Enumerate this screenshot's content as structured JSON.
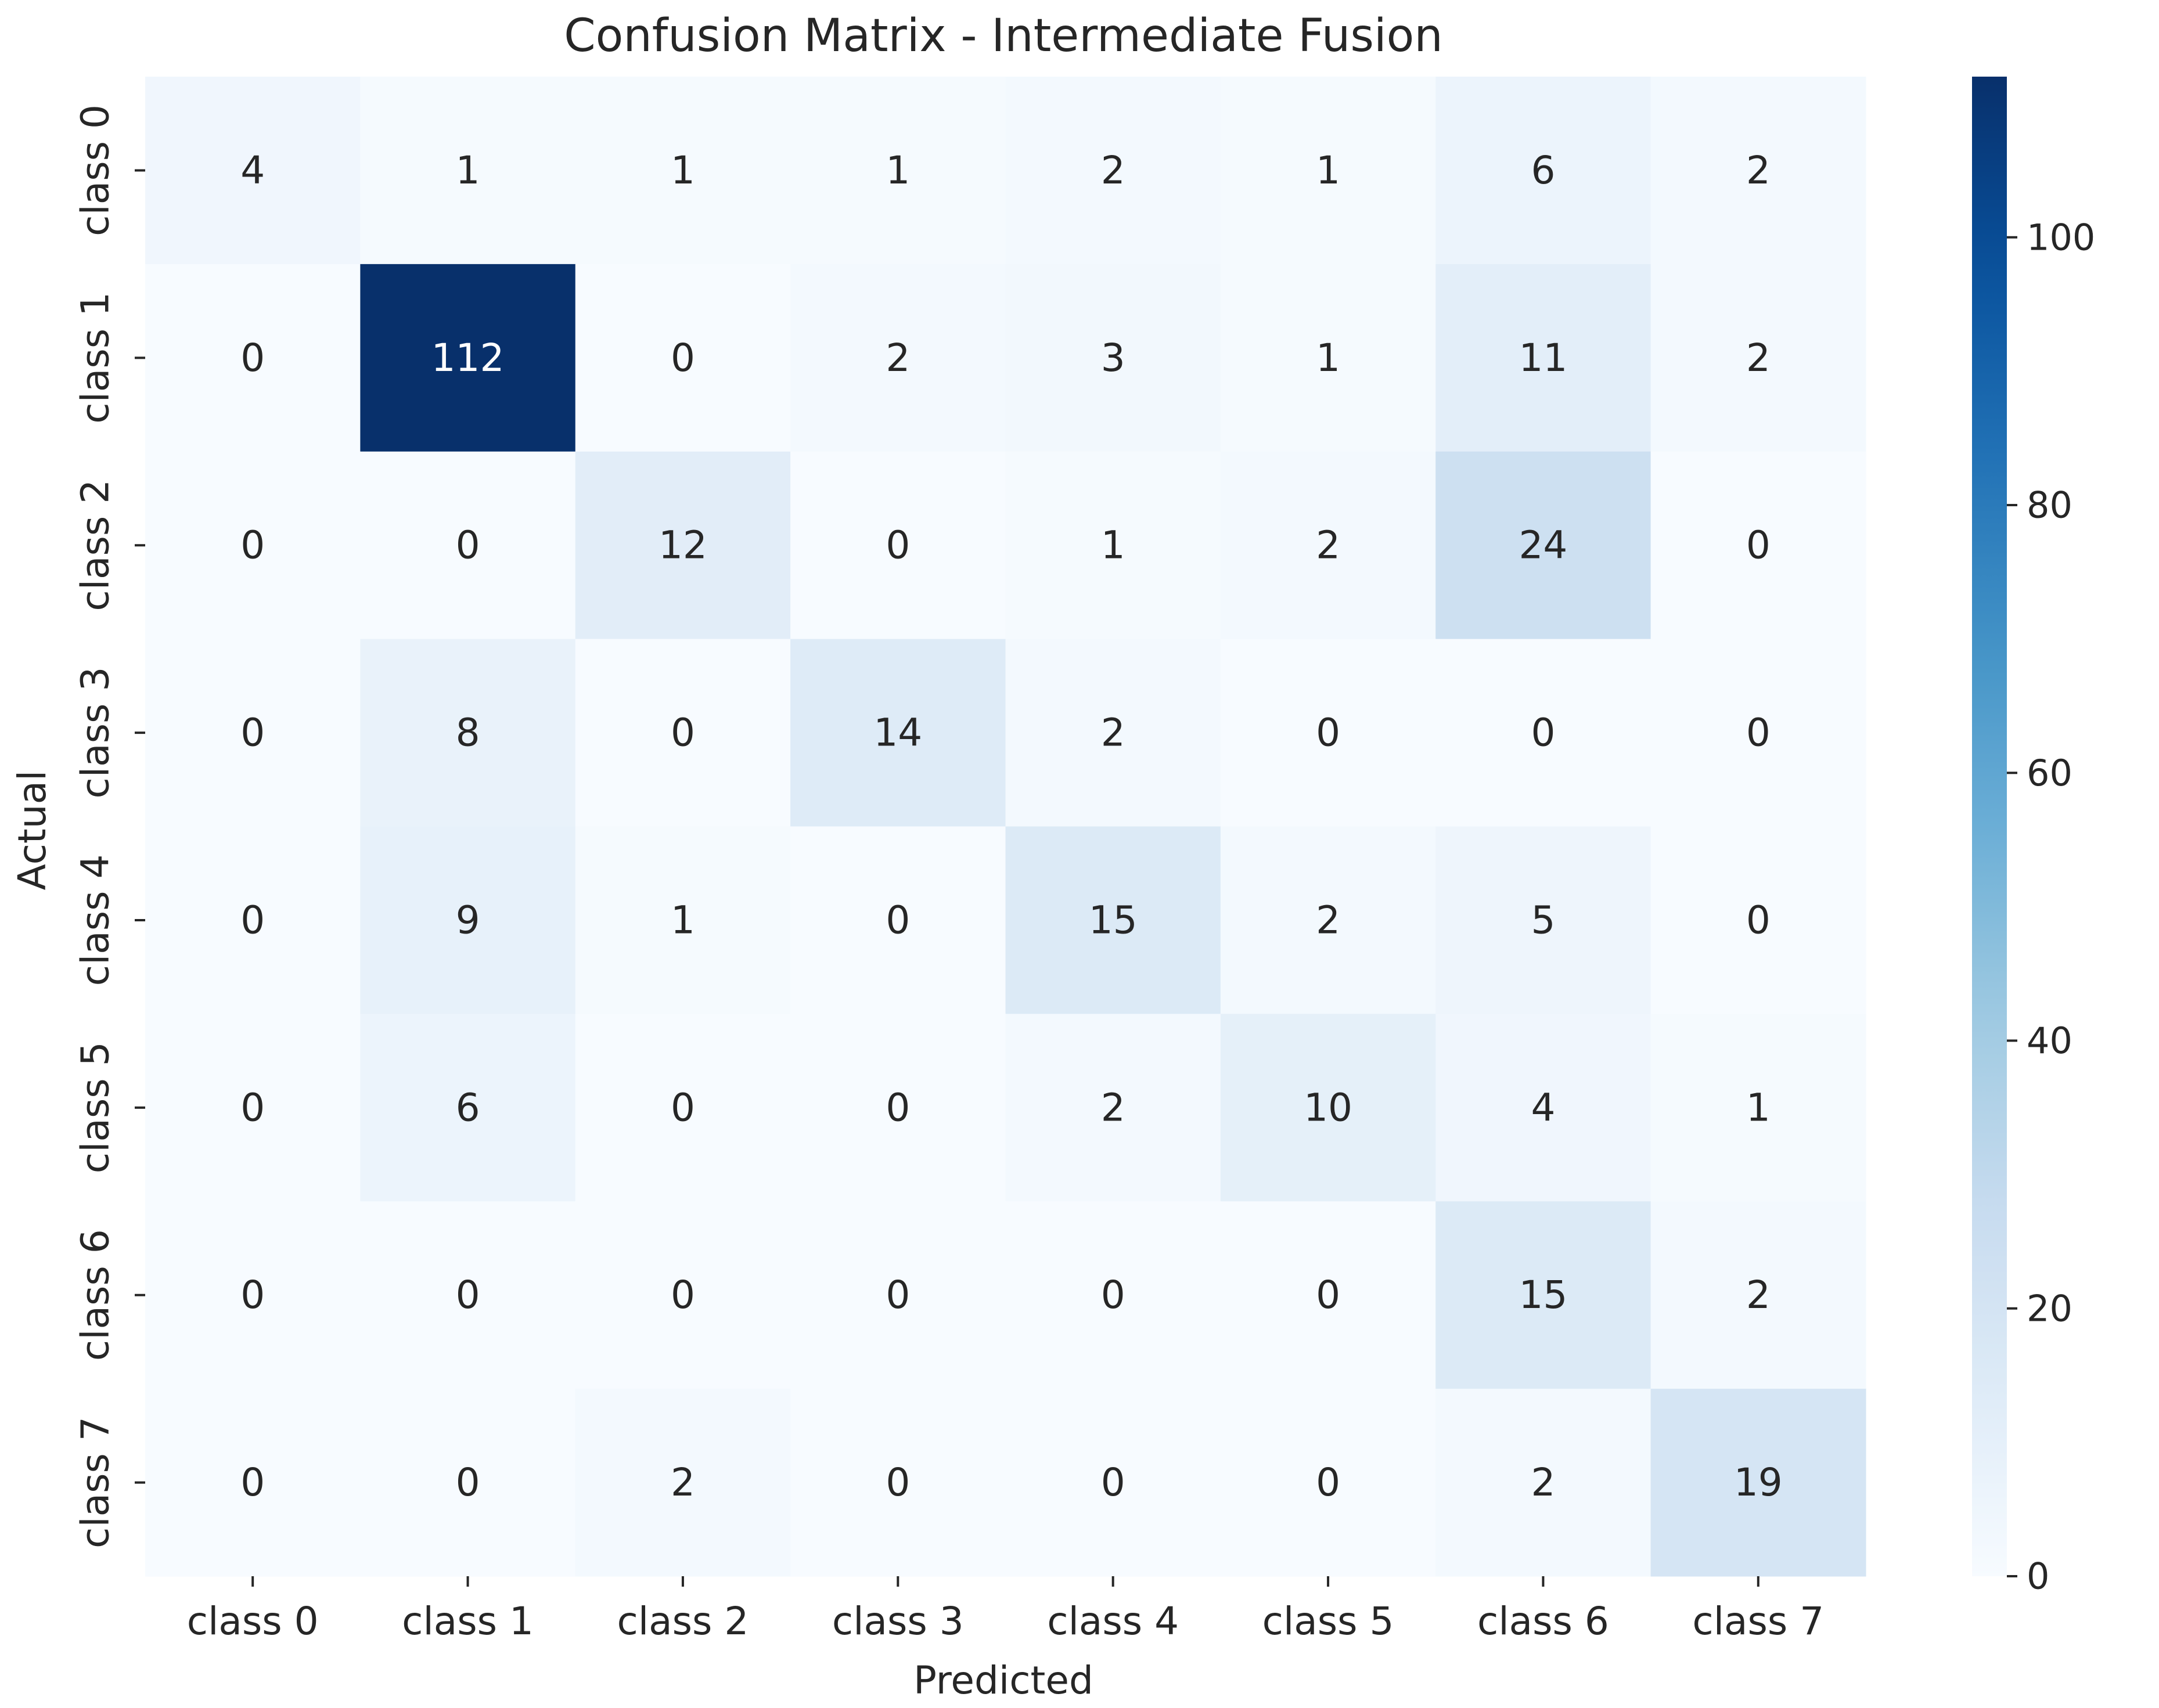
{
  "chart_data": {
    "type": "heatmap",
    "title": "Confusion Matrix - Intermediate Fusion",
    "xlabel": "Predicted",
    "ylabel": "Actual",
    "x_categories": [
      "class 0",
      "class 1",
      "class 2",
      "class 3",
      "class 4",
      "class 5",
      "class 6",
      "class 7"
    ],
    "y_categories": [
      "class 0",
      "class 1",
      "class 2",
      "class 3",
      "class 4",
      "class 5",
      "class 6",
      "class 7"
    ],
    "values": [
      [
        4,
        1,
        1,
        1,
        2,
        1,
        6,
        2
      ],
      [
        0,
        112,
        0,
        2,
        3,
        1,
        11,
        2
      ],
      [
        0,
        0,
        12,
        0,
        1,
        2,
        24,
        0
      ],
      [
        0,
        8,
        0,
        14,
        2,
        0,
        0,
        0
      ],
      [
        0,
        9,
        1,
        0,
        15,
        2,
        5,
        0
      ],
      [
        0,
        6,
        0,
        0,
        2,
        10,
        4,
        1
      ],
      [
        0,
        0,
        0,
        0,
        0,
        0,
        15,
        2
      ],
      [
        0,
        0,
        2,
        0,
        0,
        0,
        2,
        19
      ]
    ],
    "colormap": "Blues",
    "color_range": [
      0,
      112
    ],
    "colorbar_ticks": [
      0,
      20,
      40,
      60,
      80,
      100
    ],
    "annotation_dark_text_color": "#262626",
    "annotation_light_text_color": "#ffffff"
  }
}
